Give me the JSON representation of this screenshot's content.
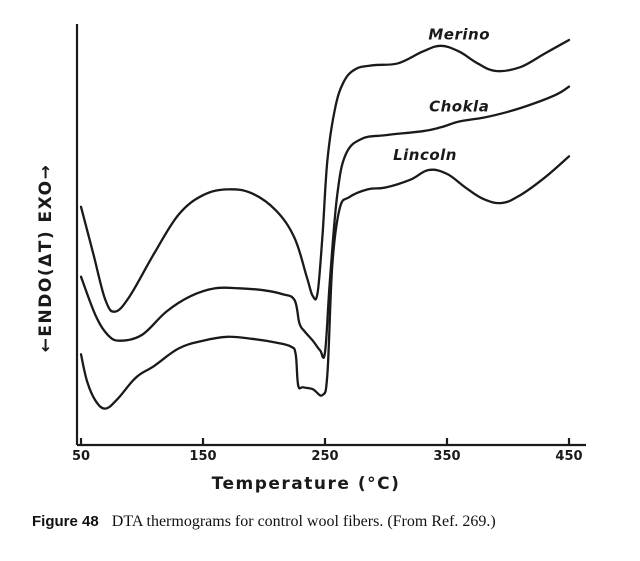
{
  "chart_data": {
    "type": "line",
    "title": "",
    "xlabel": "Temperature (°C)",
    "ylabel": "←ENDO(ΔT) EXO→",
    "xlim": [
      50,
      450
    ],
    "ylim": [
      0,
      100
    ],
    "x_ticks": [
      50,
      150,
      250,
      350,
      450
    ],
    "x_tick_labels": [
      "50",
      "150",
      "250",
      "350",
      "450"
    ],
    "grid": false,
    "legend": "none (series labelled inline above each curve)",
    "y_units": "arbitrary (ΔT, relative)",
    "series": [
      {
        "name": "Merino",
        "x": [
          50,
          60,
          70,
          78,
          90,
          110,
          130,
          150,
          170,
          190,
          210,
          225,
          235,
          240,
          244,
          248,
          252,
          258,
          265,
          275,
          290,
          310,
          330,
          345,
          360,
          375,
          390,
          410,
          430,
          450
        ],
        "y": [
          57,
          45,
          33,
          30,
          34,
          45,
          55,
          60,
          61.5,
          60.5,
          56,
          49,
          39,
          34,
          35,
          50,
          69,
          82,
          89,
          92.5,
          93.5,
          94,
          97,
          98.5,
          97,
          94,
          92,
          93,
          96.5,
          100
        ]
      },
      {
        "name": "Chokla",
        "x": [
          50,
          62,
          72,
          82,
          100,
          120,
          140,
          160,
          180,
          200,
          215,
          225,
          229,
          233,
          240,
          246,
          250,
          254,
          260,
          267,
          280,
          300,
          330,
          345,
          360,
          380,
          400,
          420,
          440,
          450
        ],
        "y": [
          39,
          29,
          24,
          22.5,
          24,
          30,
          34,
          36,
          36,
          35.5,
          34.5,
          33,
          27,
          25,
          22.5,
          20,
          19.5,
          38,
          60,
          70.5,
          74.5,
          75.5,
          76.5,
          77.5,
          79,
          80,
          81.5,
          83.5,
          86,
          88
        ]
      },
      {
        "name": "Lincoln",
        "x": [
          50,
          55,
          62,
          70,
          80,
          95,
          110,
          130,
          150,
          170,
          190,
          210,
          222,
          226,
          228,
          232,
          240,
          248,
          252,
          256,
          262,
          270,
          285,
          300,
          320,
          335,
          350,
          365,
          380,
          395,
          410,
          430,
          450
        ],
        "y": [
          19,
          12,
          7,
          5,
          7.5,
          13,
          16,
          20.5,
          22.5,
          23.5,
          23,
          22,
          21,
          19,
          11,
          10.5,
          10,
          8.5,
          14,
          42,
          56.5,
          59.5,
          61.5,
          62,
          64,
          66.5,
          65.5,
          62,
          59,
          58,
          60,
          64.5,
          70
        ]
      }
    ],
    "caption": {
      "label": "Figure 48",
      "text": "DTA thermograms for control wool fibers. (From Ref. 269.)"
    }
  }
}
